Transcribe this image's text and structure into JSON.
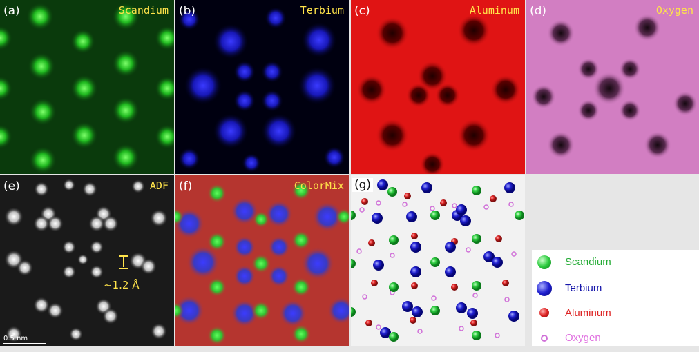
{
  "panels": {
    "a": {
      "label": "(a)",
      "title": "Scandium"
    },
    "b": {
      "label": "(b)",
      "title": "Terbium"
    },
    "c": {
      "label": "(c)",
      "title": "Aluminum"
    },
    "d": {
      "label": "(d)",
      "title": "Oxygen"
    },
    "e": {
      "label": "(e)",
      "title": "ADF",
      "scale": "0.5 nm",
      "distance": "~1.2 Å"
    },
    "f": {
      "label": "(f)",
      "title": "ColorMix"
    },
    "g": {
      "label": "(g)"
    }
  },
  "legend": [
    {
      "name": "Scandium",
      "color": "#22cc33"
    },
    {
      "name": "Terbium",
      "color": "#1515cc"
    },
    {
      "name": "Aluminum",
      "color": "#dd2222"
    },
    {
      "name": "Oxygen",
      "color": "#e070e0"
    }
  ]
}
